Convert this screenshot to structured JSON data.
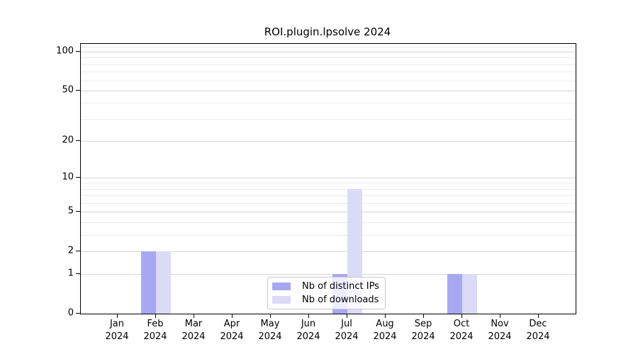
{
  "window": {
    "background": "#ffffff"
  },
  "chart_data": {
    "type": "bar",
    "title": "ROI.plugin.lpsolve 2024",
    "xlabel": "",
    "ylabel": "",
    "categories": [
      "Jan",
      "Feb",
      "Mar",
      "Apr",
      "May",
      "Jun",
      "Jul",
      "Aug",
      "Sep",
      "Oct",
      "Nov",
      "Dec"
    ],
    "year_label": "2024",
    "series": [
      {
        "name": "Nb of distinct IPs",
        "color": "#a8a8f2",
        "values": [
          0,
          2,
          0,
          0,
          0,
          0,
          1,
          0,
          0,
          1,
          0,
          0
        ]
      },
      {
        "name": "Nb of downloads",
        "color": "#dbdbf8",
        "values": [
          0,
          2,
          0,
          0,
          0,
          0,
          8,
          0,
          0,
          1,
          0,
          0
        ]
      }
    ],
    "yscale": "log1p",
    "ylim": [
      0,
      115
    ],
    "y_major_ticks": [
      0,
      1,
      2,
      5,
      10,
      20,
      50,
      100
    ],
    "y_minor_ticks": [
      3,
      4,
      6,
      7,
      8,
      9,
      30,
      40,
      60,
      70,
      80,
      90,
      110
    ],
    "grid": true,
    "legend_position": "lower-center-inside",
    "colors": {
      "bar_distinct_ips": "#a8a8f2",
      "bar_downloads": "#dbdbf8",
      "grid_major": "#d5d5d5",
      "grid_minor": "#ececec",
      "spine": "#000000",
      "text": "#000000",
      "legend_border": "#c9c9c9",
      "legend_background": "rgba(255,255,255,0.8)"
    }
  }
}
